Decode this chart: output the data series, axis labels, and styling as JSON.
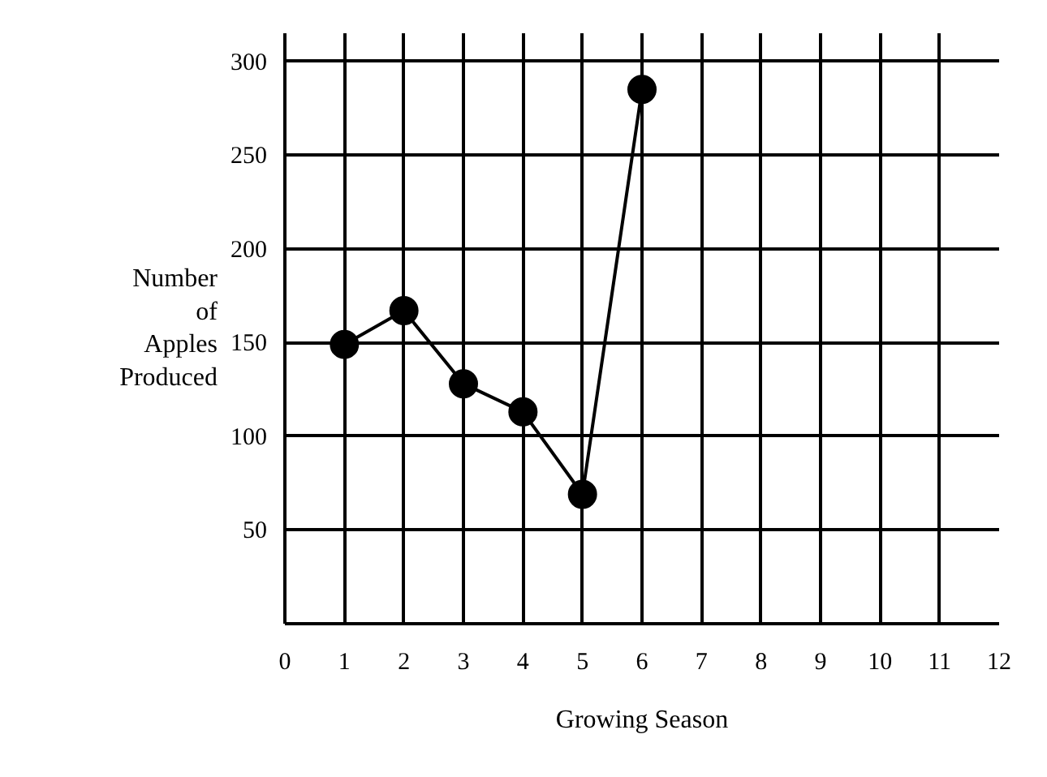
{
  "chart_data": {
    "type": "line",
    "xlabel": "Growing Season",
    "ylabel": "Number\nof\nApples\nProduced",
    "x": [
      1,
      2,
      3,
      4,
      5,
      6
    ],
    "values": [
      149,
      167,
      128,
      113,
      69,
      285
    ],
    "color": "#000000",
    "marker": "circle",
    "line_style": "solid",
    "xlim": [
      0,
      12
    ],
    "ylim": [
      0,
      315
    ],
    "xticks": [
      0,
      1,
      2,
      3,
      4,
      5,
      6,
      7,
      8,
      9,
      10,
      11,
      12
    ],
    "yticks": [
      50,
      100,
      150,
      200,
      250,
      300
    ],
    "grid": true
  }
}
